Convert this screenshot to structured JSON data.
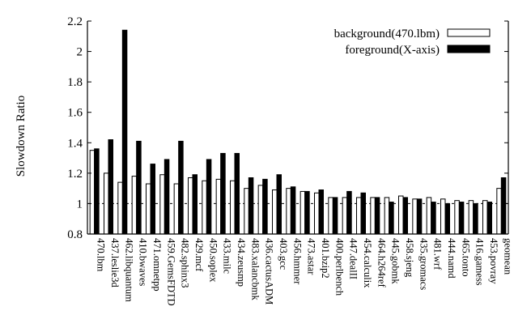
{
  "chart_data": {
    "type": "bar",
    "ylabel": "Slowdown Ratio",
    "ylim": [
      0.8,
      2.2
    ],
    "yticks": [
      "0.8",
      "1",
      "1.2",
      "1.4",
      "1.6",
      "1.8",
      "2",
      "2.2"
    ],
    "reference_line": 1.0,
    "legend_position": "top-right",
    "categories": [
      "470.lbm",
      "437.leslie3d",
      "462.libquantum",
      "410.bwaves",
      "471.omnetpp",
      "459.GemsFDTD",
      "482.sphinx3",
      "429.mcf",
      "450.soplex",
      "433.milc",
      "434.zeusmp",
      "483.xalancbmk",
      "436.cactusADM",
      "403.gcc",
      "456.hmmer",
      "473.astar",
      "401.bzip2",
      "400.perlbench",
      "447.dealII",
      "454.calculix",
      "464.h264ref",
      "445.gobmk",
      "458.sjeng",
      "435.gromacs",
      "481.wrf",
      "444.namd",
      "465.tonto",
      "416.gamess",
      "453.povray",
      "geomean"
    ],
    "series": [
      {
        "name": "background(470.lbm)",
        "color": "#ffffff",
        "values": [
          1.35,
          1.2,
          1.14,
          1.18,
          1.13,
          1.19,
          1.13,
          1.17,
          1.15,
          1.16,
          1.15,
          1.1,
          1.12,
          1.09,
          1.1,
          1.08,
          1.07,
          1.04,
          1.04,
          1.04,
          1.04,
          1.04,
          1.05,
          1.03,
          1.04,
          1.03,
          1.02,
          1.02,
          1.02,
          1.1
        ]
      },
      {
        "name": "foreground(X-axis)",
        "color": "#000000",
        "values": [
          1.36,
          1.42,
          2.14,
          1.41,
          1.26,
          1.29,
          1.41,
          1.19,
          1.29,
          1.33,
          1.33,
          1.17,
          1.16,
          1.19,
          1.11,
          1.08,
          1.09,
          1.04,
          1.08,
          1.07,
          1.04,
          1.01,
          1.04,
          1.03,
          1.01,
          1.0,
          1.01,
          1.0,
          1.01,
          1.17
        ]
      }
    ]
  }
}
